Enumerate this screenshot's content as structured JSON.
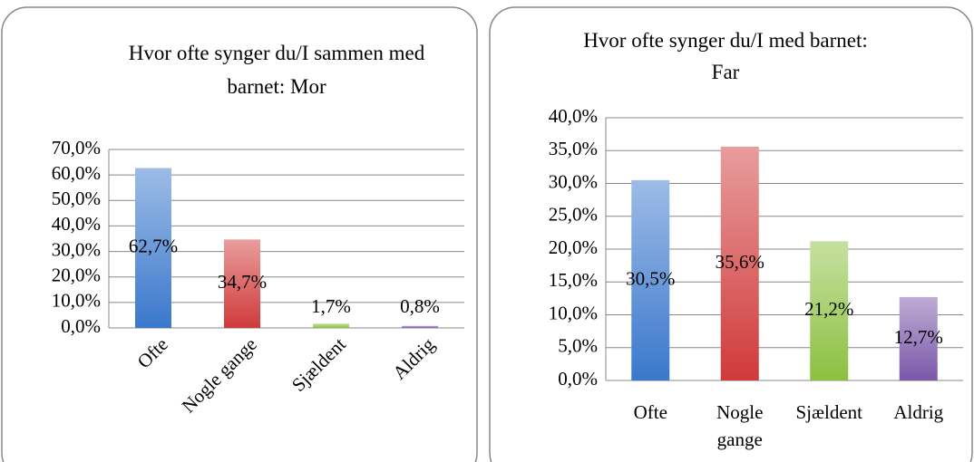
{
  "chart_data": [
    {
      "type": "bar",
      "title": "Hvor ofte synger du/I sammen med barnet: Mor",
      "categories": [
        "Ofte",
        "Nogle gange",
        "Sjældent",
        "Aldrig"
      ],
      "values": [
        62.7,
        34.7,
        1.7,
        0.8
      ],
      "value_labels": [
        "62,7%",
        "34,7%",
        "1,7%",
        "0,8%"
      ],
      "colors": [
        "#3a78cc",
        "#d03a3a",
        "#8cc040",
        "#7a58a8"
      ],
      "ylim": [
        0,
        70
      ],
      "yticks": [
        {
          "value": 0,
          "label": "0,0%"
        },
        {
          "value": 10,
          "label": "10,0%"
        },
        {
          "value": 20,
          "label": "20,0%"
        },
        {
          "value": 30,
          "label": "30,0%"
        },
        {
          "value": 40,
          "label": "40,0%"
        },
        {
          "value": 50,
          "label": "50,0%"
        },
        {
          "value": 60,
          "label": "60,0%"
        },
        {
          "value": 70,
          "label": "70,0%"
        }
      ],
      "grid": true
    },
    {
      "type": "bar",
      "title": "Hvor ofte synger du/I med barnet: Far",
      "categories": [
        "Ofte",
        "Nogle gange",
        "Sjældent",
        "Aldrig"
      ],
      "values": [
        30.5,
        35.6,
        21.2,
        12.7
      ],
      "value_labels": [
        "30,5%",
        "35,6%",
        "21,2%",
        "12,7%"
      ],
      "colors": [
        "#3a78cc",
        "#d03a3a",
        "#8cc040",
        "#7a58a8"
      ],
      "ylim": [
        0,
        40
      ],
      "yticks": [
        {
          "value": 0,
          "label": "0,0%"
        },
        {
          "value": 5,
          "label": "5,0%"
        },
        {
          "value": 10,
          "label": "10,0%"
        },
        {
          "value": 15,
          "label": "15,0%"
        },
        {
          "value": 20,
          "label": "20,0%"
        },
        {
          "value": 25,
          "label": "25,0%"
        },
        {
          "value": 30,
          "label": "30,0%"
        },
        {
          "value": 35,
          "label": "35,0%"
        },
        {
          "value": 40,
          "label": "40,0%"
        }
      ],
      "grid": true
    }
  ]
}
